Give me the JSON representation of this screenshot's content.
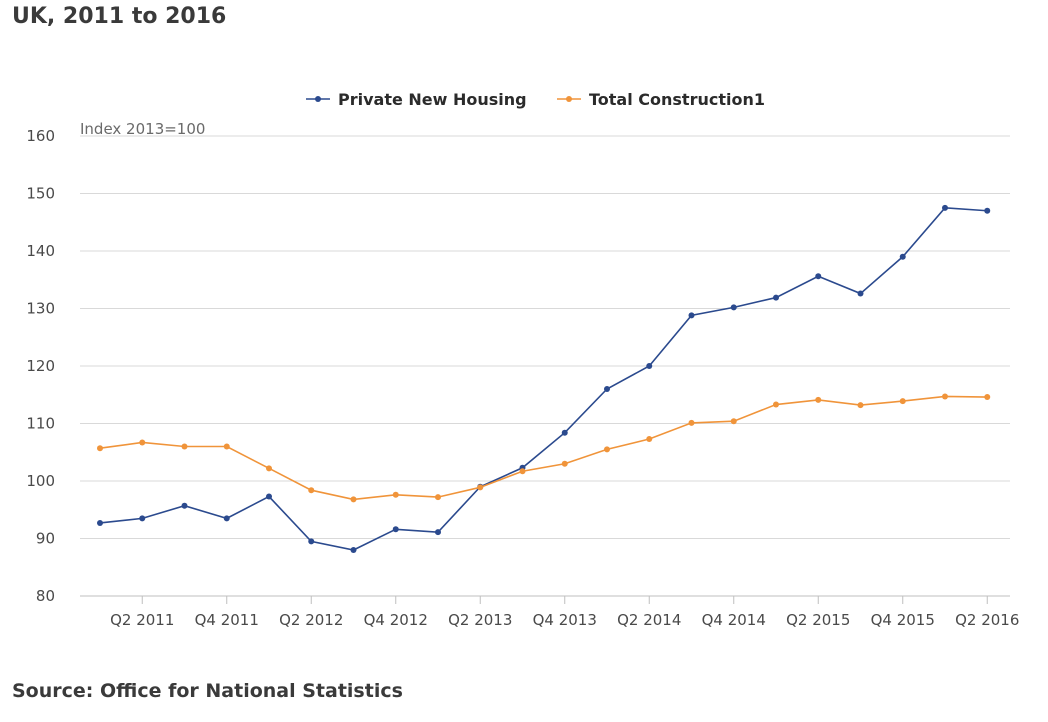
{
  "title": "UK, 2011 to 2016",
  "source": "Source: Office for National Statistics",
  "chart_data": {
    "type": "line",
    "unit_label": "Index 2013=100",
    "x": [
      "Q1 2011",
      "Q2 2011",
      "Q3 2011",
      "Q4 2011",
      "Q1 2012",
      "Q2 2012",
      "Q3 2012",
      "Q4 2012",
      "Q1 2013",
      "Q2 2013",
      "Q3 2013",
      "Q4 2013",
      "Q1 2014",
      "Q2 2014",
      "Q3 2014",
      "Q4 2014",
      "Q1 2015",
      "Q2 2015",
      "Q3 2015",
      "Q4 2015",
      "Q1 2016",
      "Q2 2016"
    ],
    "tick_labels": [
      "Q2 2011",
      "Q4 2011",
      "Q2 2012",
      "Q4 2012",
      "Q2 2013",
      "Q4 2013",
      "Q2 2014",
      "Q4 2014",
      "Q2 2015",
      "Q4 2015",
      "Q2 2016"
    ],
    "yticks": [
      80,
      90,
      100,
      110,
      120,
      130,
      140,
      150,
      160
    ],
    "ylim": [
      80,
      160
    ],
    "grid": true,
    "legend_position": "top",
    "series": [
      {
        "name": "Private New Housing",
        "color": "#2b4a8e",
        "values": [
          92.7,
          93.5,
          95.7,
          93.5,
          97.3,
          89.5,
          88.0,
          91.6,
          91.1,
          99.0,
          102.3,
          108.4,
          116.0,
          120.0,
          128.8,
          130.2,
          131.9,
          135.6,
          132.6,
          139.0,
          147.5,
          147.0
        ]
      },
      {
        "name": "Total Construction1",
        "color": "#f0943a",
        "values": [
          105.7,
          106.7,
          106.0,
          106.0,
          102.2,
          98.4,
          96.8,
          97.6,
          97.2,
          98.9,
          101.7,
          103.0,
          105.5,
          107.3,
          110.1,
          110.4,
          113.3,
          114.1,
          113.2,
          113.9,
          114.7,
          114.6
        ]
      }
    ]
  }
}
